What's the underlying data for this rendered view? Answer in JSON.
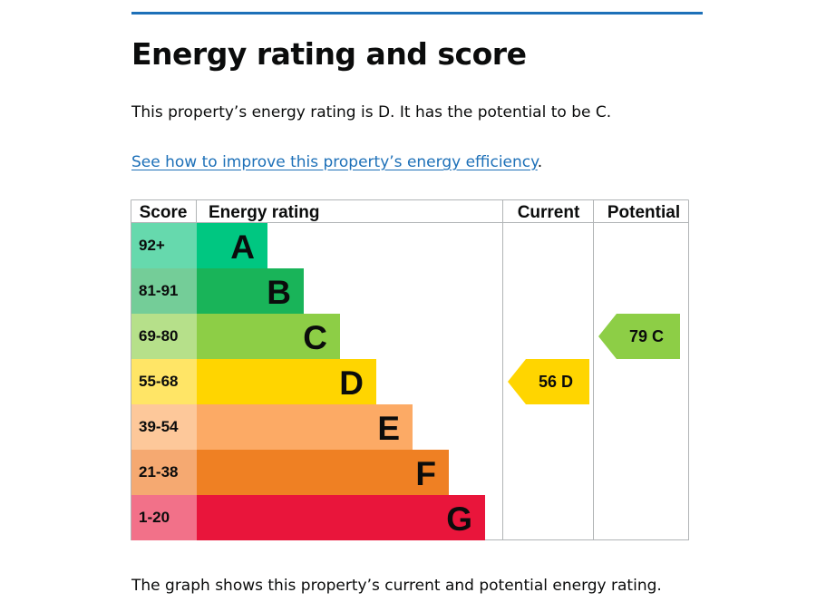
{
  "page": {
    "title": "Energy rating and score",
    "summary": "This property’s energy rating is D. It has the potential to be C.",
    "link_text": "See how to improve this property’s energy efficiency",
    "link_suffix": ".",
    "caption": "The graph shows this property’s current and potential energy rating.",
    "accent_color": "#1d70b8"
  },
  "chart_data": {
    "type": "bar",
    "columns": [
      "Score",
      "Energy rating",
      "Current",
      "Potential"
    ],
    "bands": [
      {
        "letter": "A",
        "score": "92+",
        "color": "#00c781",
        "score_bg": "#66d9ad",
        "value": 1
      },
      {
        "letter": "B",
        "score": "81-91",
        "color": "#19b459",
        "score_bg": "#74cd98",
        "value": 2
      },
      {
        "letter": "C",
        "score": "69-80",
        "color": "#8dce46",
        "score_bg": "#b6e08a",
        "value": 3
      },
      {
        "letter": "D",
        "score": "55-68",
        "color": "#ffd500",
        "score_bg": "#ffe566",
        "value": 4
      },
      {
        "letter": "E",
        "score": "39-54",
        "color": "#fcaa65",
        "score_bg": "#fdc89a",
        "value": 5
      },
      {
        "letter": "F",
        "score": "21-38",
        "color": "#ef8023",
        "score_bg": "#f5a971",
        "value": 6
      },
      {
        "letter": "G",
        "score": "1-20",
        "color": "#e9153b",
        "score_bg": "#f27189",
        "value": 7
      }
    ],
    "current": {
      "score": 56,
      "letter": "D",
      "label": "56  D",
      "color": "#ffd500"
    },
    "potential": {
      "score": 79,
      "letter": "C",
      "label": "79  C",
      "color": "#8dce46"
    }
  }
}
